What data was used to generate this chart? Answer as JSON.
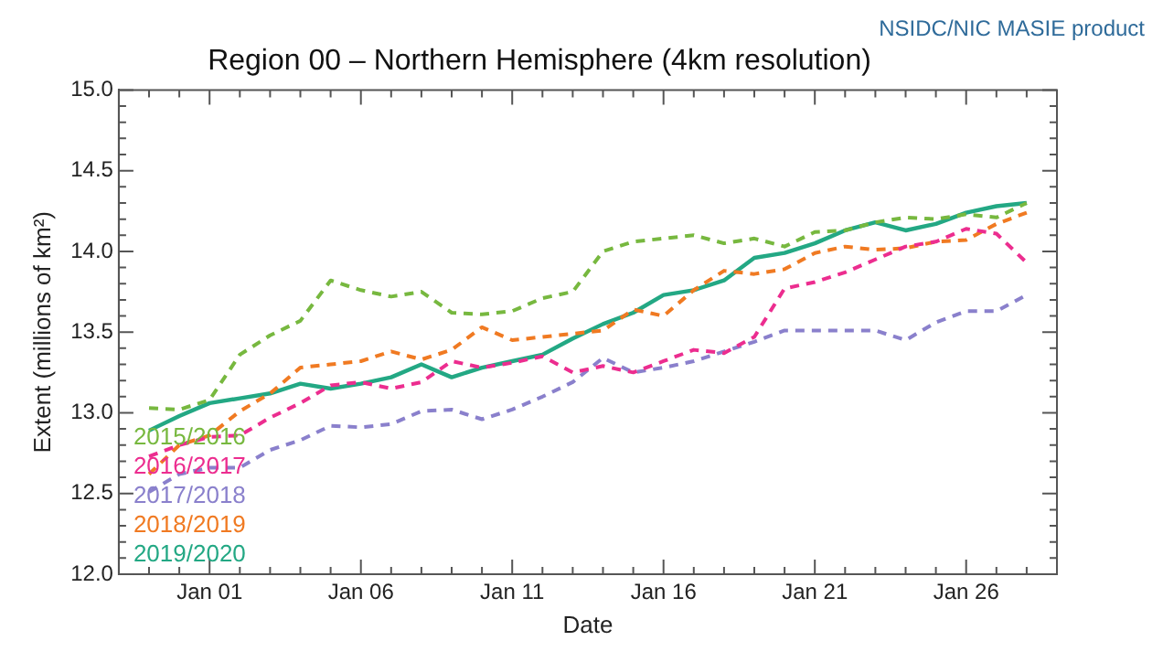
{
  "chart_data": {
    "type": "line",
    "title": "Region 00 – Northern Hemisphere (4km resolution)",
    "xlabel": "Date",
    "ylabel": "Extent (millions of km²)",
    "annotations": [
      "NSIDC/NIC MASIE product"
    ],
    "x": [
      "2019-12-30",
      "2019-12-31",
      "2020-01-01",
      "2020-01-02",
      "2020-01-03",
      "2020-01-04",
      "2020-01-05",
      "2020-01-06",
      "2020-01-07",
      "2020-01-08",
      "2020-01-09",
      "2020-01-10",
      "2020-01-11",
      "2020-01-12",
      "2020-01-13",
      "2020-01-14",
      "2020-01-15",
      "2020-01-16",
      "2020-01-17",
      "2020-01-18",
      "2020-01-19",
      "2020-01-20",
      "2020-01-21",
      "2020-01-22",
      "2020-01-23",
      "2020-01-24",
      "2020-01-25",
      "2020-01-26",
      "2020-01-27",
      "2020-01-28"
    ],
    "series": [
      {
        "name": "2015/2016",
        "color": "#77b83f",
        "line_style": "dashed",
        "values": [
          13.03,
          13.02,
          13.08,
          13.36,
          13.48,
          13.57,
          13.82,
          13.76,
          13.72,
          13.75,
          13.62,
          13.61,
          13.63,
          13.71,
          13.75,
          14.0,
          14.06,
          14.08,
          14.1,
          14.05,
          14.08,
          14.03,
          14.12,
          14.13,
          14.18,
          14.21,
          14.2,
          14.23,
          14.21,
          14.3
        ]
      },
      {
        "name": "2016/2017",
        "color": "#ec2d8f",
        "line_style": "dashed",
        "values": [
          12.73,
          12.8,
          12.85,
          12.86,
          12.97,
          13.06,
          13.17,
          13.19,
          13.15,
          13.19,
          13.32,
          13.28,
          13.31,
          13.35,
          13.25,
          13.29,
          13.25,
          13.32,
          13.39,
          13.37,
          13.47,
          13.77,
          13.81,
          13.87,
          13.95,
          14.03,
          14.06,
          14.14,
          14.11,
          13.93
        ]
      },
      {
        "name": "2017/2018",
        "color": "#8a80cc",
        "line_style": "dashed",
        "values": [
          12.51,
          12.62,
          12.66,
          12.66,
          12.77,
          12.83,
          12.92,
          12.91,
          12.93,
          13.01,
          13.02,
          12.96,
          13.02,
          13.1,
          13.19,
          13.34,
          13.25,
          13.28,
          13.32,
          13.38,
          13.44,
          13.51,
          13.51,
          13.51,
          13.51,
          13.45,
          13.56,
          13.63,
          13.63,
          13.73
        ]
      },
      {
        "name": "2018/2019",
        "color": "#f07a22",
        "line_style": "dashed",
        "values": [
          12.62,
          12.8,
          12.86,
          13.01,
          13.12,
          13.28,
          13.3,
          13.32,
          13.38,
          13.33,
          13.39,
          13.53,
          13.45,
          13.47,
          13.49,
          13.51,
          13.64,
          13.6,
          13.76,
          13.88,
          13.86,
          13.89,
          13.99,
          14.03,
          14.01,
          14.02,
          14.06,
          14.07,
          14.17,
          14.24
        ]
      },
      {
        "name": "2019/2020",
        "color": "#23a884",
        "line_style": "solid",
        "values": [
          12.89,
          12.98,
          13.06,
          13.09,
          13.12,
          13.18,
          13.15,
          13.18,
          13.22,
          13.3,
          13.22,
          13.28,
          13.32,
          13.36,
          13.46,
          13.55,
          13.62,
          13.73,
          13.76,
          13.82,
          13.96,
          13.99,
          14.05,
          14.13,
          14.18,
          14.13,
          14.17,
          14.24,
          14.28,
          14.3
        ]
      }
    ],
    "legend": "bottom left",
    "grid": false,
    "marker": "none",
    "xlim": [
      "2019-12-29",
      "2020-01-29"
    ],
    "xticks": [
      {
        "value": "2019-12-30",
        "label": null
      },
      {
        "value": "2019-12-31",
        "label": null
      },
      {
        "value": "2020-01-01",
        "label": "Jan 01"
      },
      {
        "value": "2020-01-02",
        "label": null
      },
      {
        "value": "2020-01-03",
        "label": null
      },
      {
        "value": "2020-01-04",
        "label": null
      },
      {
        "value": "2020-01-05",
        "label": null
      },
      {
        "value": "2020-01-06",
        "label": "Jan 06"
      },
      {
        "value": "2020-01-07",
        "label": null
      },
      {
        "value": "2020-01-08",
        "label": null
      },
      {
        "value": "2020-01-09",
        "label": null
      },
      {
        "value": "2020-01-10",
        "label": null
      },
      {
        "value": "2020-01-11",
        "label": "Jan 11"
      },
      {
        "value": "2020-01-12",
        "label": null
      },
      {
        "value": "2020-01-13",
        "label": null
      },
      {
        "value": "2020-01-14",
        "label": null
      },
      {
        "value": "2020-01-15",
        "label": null
      },
      {
        "value": "2020-01-16",
        "label": "Jan 16"
      },
      {
        "value": "2020-01-17",
        "label": null
      },
      {
        "value": "2020-01-18",
        "label": null
      },
      {
        "value": "2020-01-19",
        "label": null
      },
      {
        "value": "2020-01-20",
        "label": null
      },
      {
        "value": "2020-01-21",
        "label": "Jan 21"
      },
      {
        "value": "2020-01-22",
        "label": null
      },
      {
        "value": "2020-01-23",
        "label": null
      },
      {
        "value": "2020-01-24",
        "label": null
      },
      {
        "value": "2020-01-25",
        "label": null
      },
      {
        "value": "2020-01-26",
        "label": "Jan 26"
      },
      {
        "value": "2020-01-27",
        "label": null
      },
      {
        "value": "2020-01-28",
        "label": null
      }
    ],
    "ylim": [
      12.0,
      15.0
    ],
    "yticks": [
      {
        "value": 12.0,
        "label": "12.0"
      },
      {
        "value": 12.1,
        "label": null
      },
      {
        "value": 12.2,
        "label": null
      },
      {
        "value": 12.3,
        "label": null
      },
      {
        "value": 12.4,
        "label": null
      },
      {
        "value": 12.5,
        "label": "12.5"
      },
      {
        "value": 12.6,
        "label": null
      },
      {
        "value": 12.7,
        "label": null
      },
      {
        "value": 12.8,
        "label": null
      },
      {
        "value": 12.9,
        "label": null
      },
      {
        "value": 13.0,
        "label": "13.0"
      },
      {
        "value": 13.1,
        "label": null
      },
      {
        "value": 13.2,
        "label": null
      },
      {
        "value": 13.3,
        "label": null
      },
      {
        "value": 13.4,
        "label": null
      },
      {
        "value": 13.5,
        "label": "13.5"
      },
      {
        "value": 13.6,
        "label": null
      },
      {
        "value": 13.7,
        "label": null
      },
      {
        "value": 13.8,
        "label": null
      },
      {
        "value": 13.9,
        "label": null
      },
      {
        "value": 14.0,
        "label": "14.0"
      },
      {
        "value": 14.1,
        "label": null
      },
      {
        "value": 14.2,
        "label": null
      },
      {
        "value": 14.3,
        "label": null
      },
      {
        "value": 14.4,
        "label": null
      },
      {
        "value": 14.5,
        "label": "14.5"
      },
      {
        "value": 14.6,
        "label": null
      },
      {
        "value": 14.7,
        "label": null
      },
      {
        "value": 14.8,
        "label": null
      },
      {
        "value": 14.9,
        "label": null
      },
      {
        "value": 15.0,
        "label": "15.0"
      }
    ]
  }
}
